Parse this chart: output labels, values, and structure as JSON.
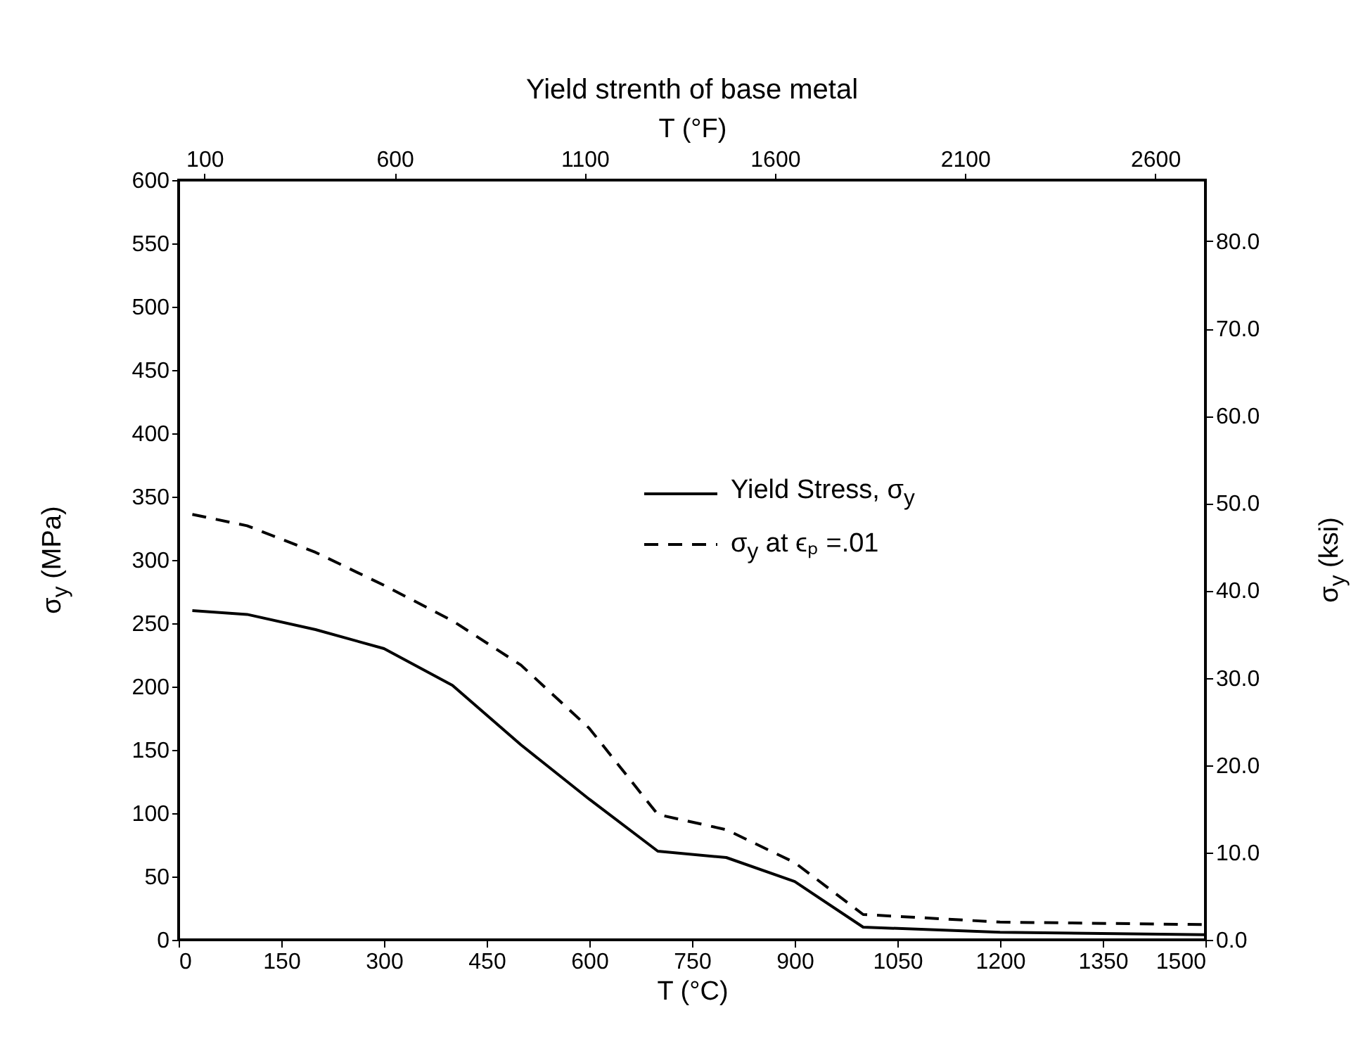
{
  "chart_data": {
    "type": "line",
    "title": "Yield strenth of base metal",
    "xlabel": "T (°C)",
    "x2label": "T (°F)",
    "ylabel": "σ$_{y}$ (MPa)",
    "y2label": "σ$_{y}$ (ksi)",
    "x": [
      20,
      100,
      200,
      300,
      400,
      500,
      600,
      700,
      800,
      900,
      1000,
      1200,
      1500
    ],
    "series": [
      {
        "name": "Yield Stress, σ$_{y}$",
        "color": "#000000",
        "line_style": "solid",
        "values": [
          260,
          257,
          245,
          230,
          201,
          154,
          111,
          70,
          65,
          46,
          10,
          6,
          4
        ]
      },
      {
        "name": "σ$_{y}$ at ϵₚ =.01",
        "color": "#000000",
        "line_style": "dashed",
        "values": [
          336,
          327,
          306,
          280,
          252,
          217,
          167,
          99,
          87,
          61,
          20,
          14,
          12
        ]
      }
    ],
    "xlim": [
      0,
      1500
    ],
    "xticks": [
      0,
      150,
      300,
      450,
      600,
      750,
      900,
      1050,
      1200,
      1350,
      1500
    ],
    "x2lim": [
      32,
      2732
    ],
    "x2ticks": [
      100,
      600,
      1100,
      1600,
      2100,
      2600
    ],
    "ylim": [
      0,
      600
    ],
    "yticks": [
      0,
      50,
      100,
      150,
      200,
      250,
      300,
      350,
      400,
      450,
      500,
      550,
      600
    ],
    "y2lim": [
      0,
      87.0
    ],
    "y2ticks": [
      {
        "value": 0,
        "label": "0.0"
      },
      {
        "value": 10,
        "label": "10.0"
      },
      {
        "value": 20,
        "label": "20.0"
      },
      {
        "value": 30,
        "label": "30.0"
      },
      {
        "value": 40,
        "label": "40.0"
      },
      {
        "value": 50,
        "label": "50.0"
      },
      {
        "value": 60,
        "label": "60.0"
      },
      {
        "value": 70,
        "label": "70.0"
      },
      {
        "value": 80,
        "label": "80.0"
      }
    ],
    "grid": false,
    "legend": "right",
    "marker": "none"
  }
}
